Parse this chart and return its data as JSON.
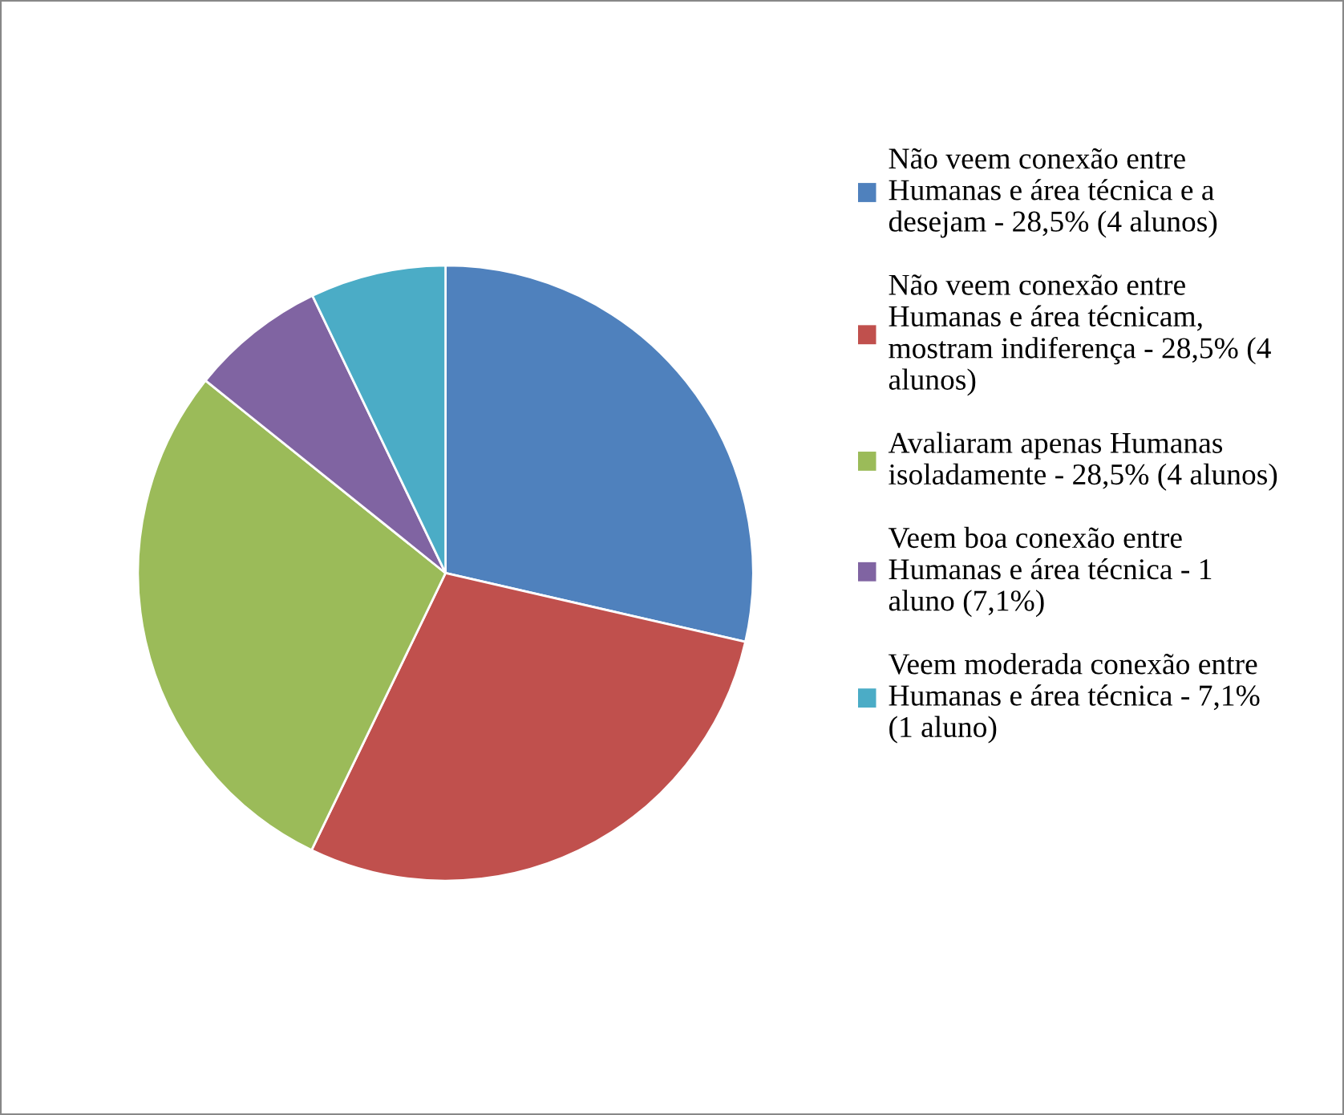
{
  "chart_data": {
    "type": "pie",
    "categories": [
      "Não veem conexão entre\nHumanas e área técnica e a\ndesejam - 28,5% (4 alunos)",
      "Não veem conexão entre\nHumanas e área técnicam,\nmostram indiferença - 28,5% (4\nalunos)",
      "Avaliaram apenas Humanas\nisoladamente - 28,5% (4 alunos)",
      "Veem boa conexão entre\nHumanas e área técnica - 1\naluno (7,1%)",
      "Veem moderada conexão entre\nHumanas e área técnica - 7,1%\n(1 aluno)"
    ],
    "values": [
      28.5,
      28.5,
      28.5,
      7.1,
      7.1
    ],
    "colors": [
      "#4f81bd",
      "#c0504d",
      "#9bbb59",
      "#8064a2",
      "#4bacc6"
    ],
    "legend": "right"
  }
}
